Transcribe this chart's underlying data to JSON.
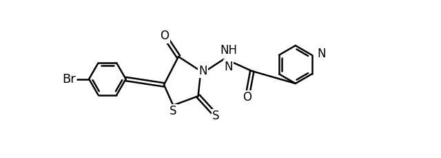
{
  "background_color": "#ffffff",
  "line_color": "#000000",
  "line_width": 1.8,
  "font_size": 12,
  "fig_width": 6.4,
  "fig_height": 2.29,
  "dpi": 100,
  "xlim": [
    0,
    13
  ],
  "ylim": [
    0,
    6
  ]
}
